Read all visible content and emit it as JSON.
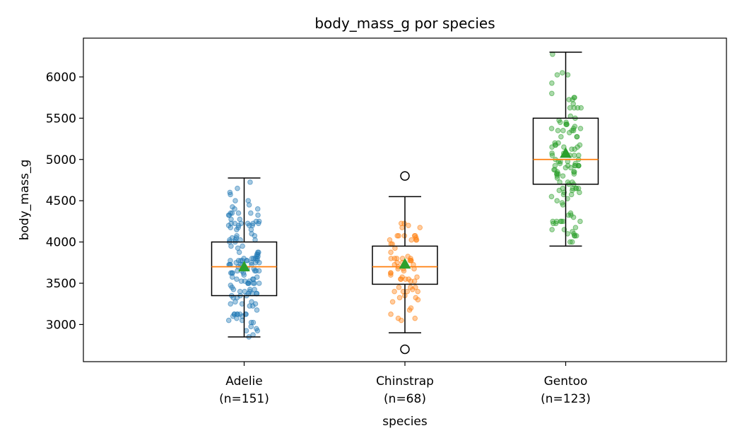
{
  "chart_data": {
    "type": "box",
    "title": "body_mass_g por species",
    "xlabel": "species",
    "ylabel": "body_mass_g",
    "ylim": [
      2550,
      6470
    ],
    "yticks": [
      3000,
      3500,
      4000,
      4500,
      5000,
      5500,
      6000
    ],
    "grid": false,
    "categories": [
      {
        "name": "Adelie",
        "n_label": "(n=151)",
        "color": "#1f77b4"
      },
      {
        "name": "Chinstrap",
        "n_label": "(n=68)",
        "color": "#ff7f0e"
      },
      {
        "name": "Gentoo",
        "n_label": "(n=123)",
        "color": "#2ca02c"
      }
    ],
    "boxes": [
      {
        "whisker_low": 2850,
        "q1": 3350,
        "median": 3700,
        "q3": 4000,
        "whisker_high": 4775,
        "mean": 3700,
        "outliers": []
      },
      {
        "whisker_low": 2900,
        "q1": 3488,
        "median": 3700,
        "q3": 3950,
        "whisker_high": 4550,
        "mean": 3733,
        "outliers": [
          4800,
          2700
        ]
      },
      {
        "whisker_low": 3950,
        "q1": 4700,
        "median": 5000,
        "q3": 5500,
        "whisker_high": 6300,
        "mean": 5076,
        "outliers": []
      }
    ],
    "colors": {
      "median": "#ff7f0e",
      "mean_marker": "#2ca02c",
      "box": "#000000"
    }
  }
}
